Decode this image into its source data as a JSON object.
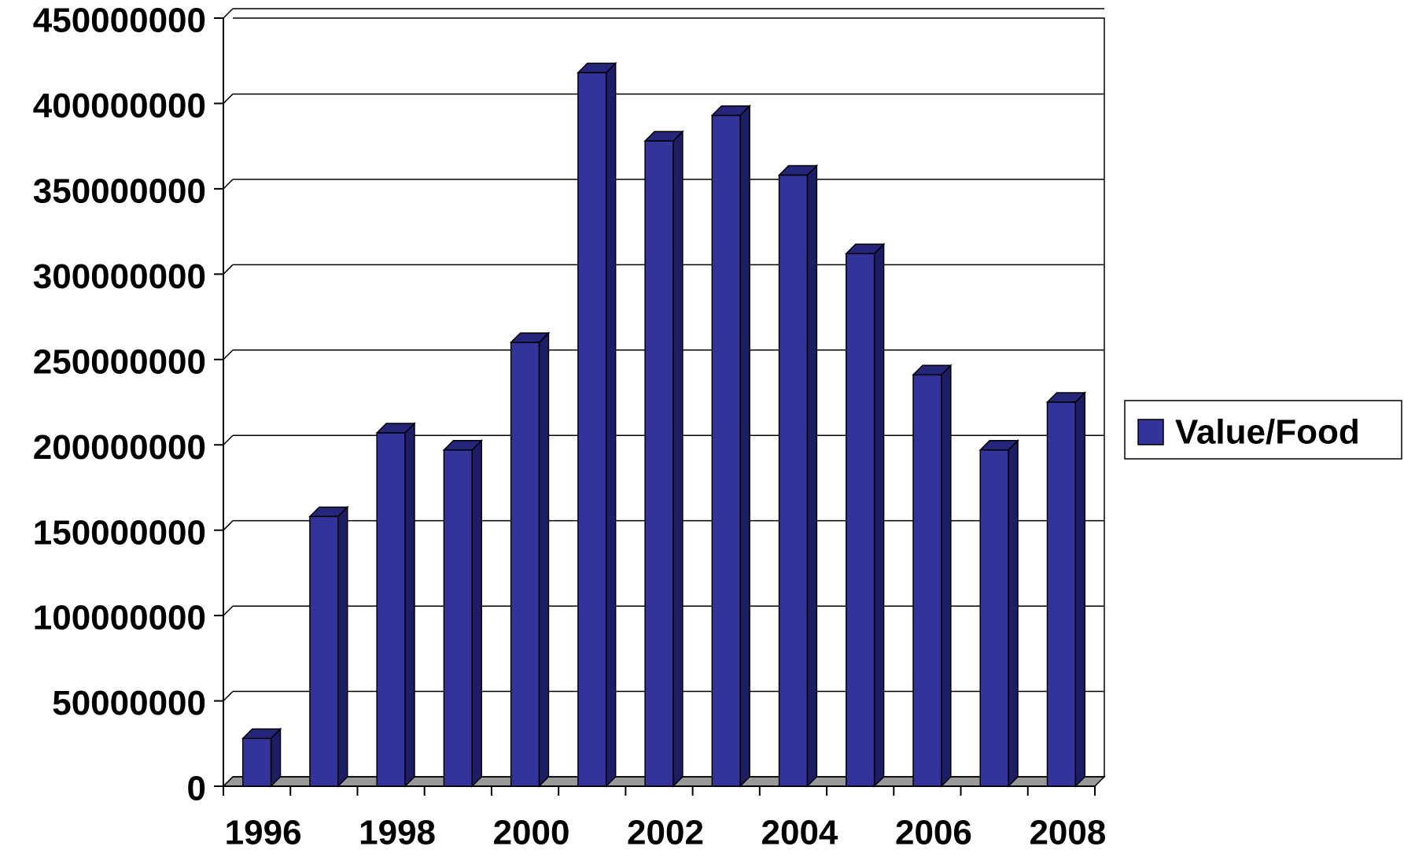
{
  "chart_data": {
    "type": "bar3d",
    "categories": [
      "1996",
      null,
      "1998",
      null,
      "2000",
      null,
      "2002",
      null,
      "2004",
      null,
      "2006",
      null,
      "2008"
    ],
    "series": [
      {
        "name": "Value/Food",
        "color": "#333399",
        "values": [
          28000000,
          158000000,
          207000000,
          197000000,
          260000000,
          418000000,
          378000000,
          393000000,
          358000000,
          312000000,
          241000000,
          197000000,
          225000000
        ]
      }
    ],
    "ylim": [
      0,
      450000000
    ],
    "yticks": [
      0,
      50000000,
      100000000,
      150000000,
      200000000,
      250000000,
      300000000,
      350000000,
      400000000,
      450000000
    ],
    "grid": true,
    "legend": "right"
  }
}
